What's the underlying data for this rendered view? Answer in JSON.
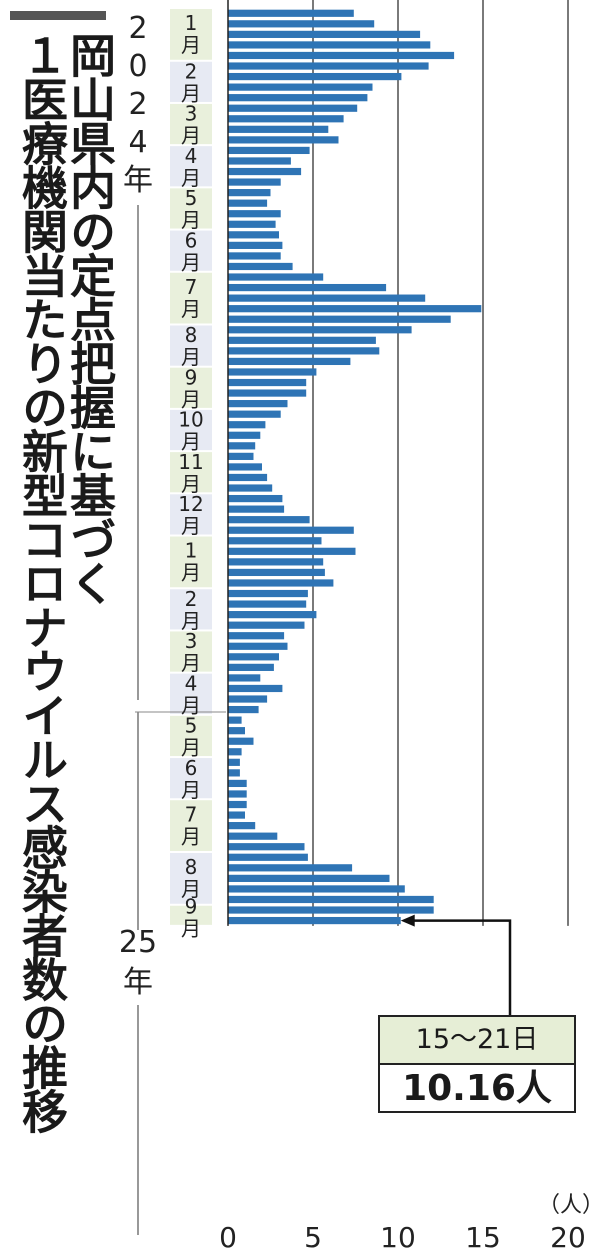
{
  "title": {
    "line1": "岡山県内の定点把握に基づく",
    "line2": "１医療機関当たりの新型コロナウイルス感染者数の推移"
  },
  "callout": {
    "period": "15〜21日",
    "value": "10.16人"
  },
  "colors": {
    "bar": "#2e74b5",
    "month_band_a": "#e9f0dc",
    "month_band_b": "#e7eaf3"
  },
  "chart_data": {
    "type": "bar",
    "orientation": "horizontal",
    "unit_label": "（人）",
    "xlim": [
      0,
      20
    ],
    "xticks": [
      "0",
      "5",
      "10",
      "15",
      "20"
    ],
    "grid": true,
    "year_labels": [
      {
        "text": "2024年",
        "chars": [
          "2",
          "0",
          "2",
          "4",
          "年"
        ],
        "start_month": 0
      },
      {
        "text": "25年",
        "chars": [
          "25",
          "年"
        ],
        "start_month": 12
      }
    ],
    "months": [
      {
        "num": "1",
        "label": "月",
        "values": [
          7.4,
          8.6,
          11.3,
          11.9,
          13.3
        ]
      },
      {
        "num": "2",
        "label": "月",
        "values": [
          11.8,
          10.2,
          8.5,
          8.2
        ]
      },
      {
        "num": "3",
        "label": "月",
        "values": [
          7.6,
          6.8,
          5.9,
          6.5
        ]
      },
      {
        "num": "4",
        "label": "月",
        "values": [
          4.8,
          3.7,
          4.3,
          3.1
        ]
      },
      {
        "num": "5",
        "label": "月",
        "values": [
          2.5,
          2.3,
          3.1,
          2.8
        ]
      },
      {
        "num": "6",
        "label": "月",
        "values": [
          3.0,
          3.2,
          3.1,
          3.8
        ]
      },
      {
        "num": "7",
        "label": "月",
        "values": [
          5.6,
          9.3,
          11.6,
          14.9,
          13.1
        ]
      },
      {
        "num": "8",
        "label": "月",
        "values": [
          10.8,
          8.7,
          8.9,
          7.2
        ]
      },
      {
        "num": "9",
        "label": "月",
        "values": [
          5.2,
          4.6,
          4.6,
          3.5
        ]
      },
      {
        "num": "10",
        "label": "月",
        "values": [
          3.1,
          2.2,
          1.9,
          1.6
        ]
      },
      {
        "num": "11",
        "label": "月",
        "values": [
          1.5,
          2.0,
          2.3,
          2.6
        ]
      },
      {
        "num": "12",
        "label": "月",
        "values": [
          3.2,
          3.3,
          4.8,
          7.4
        ]
      },
      {
        "num": "1",
        "label": "月",
        "values": [
          5.5,
          7.5,
          5.6,
          5.7,
          6.2
        ]
      },
      {
        "num": "2",
        "label": "月",
        "values": [
          4.7,
          4.6,
          5.2,
          4.5
        ]
      },
      {
        "num": "3",
        "label": "月",
        "values": [
          3.3,
          3.5,
          3.0,
          2.7
        ]
      },
      {
        "num": "4",
        "label": "月",
        "values": [
          1.9,
          3.2,
          2.3,
          1.8
        ]
      },
      {
        "num": "5",
        "label": "月",
        "values": [
          0.8,
          1.0,
          1.5,
          0.8
        ]
      },
      {
        "num": "6",
        "label": "月",
        "values": [
          0.7,
          0.7,
          1.1,
          1.1
        ]
      },
      {
        "num": "7",
        "label": "月",
        "values": [
          1.1,
          1.0,
          1.6,
          2.9,
          4.5
        ]
      },
      {
        "num": "8",
        "label": "月",
        "values": [
          4.7,
          7.3,
          9.5,
          10.4,
          12.1
        ]
      },
      {
        "num": "9",
        "label": "月",
        "values": [
          12.1,
          10.16
        ]
      }
    ]
  }
}
